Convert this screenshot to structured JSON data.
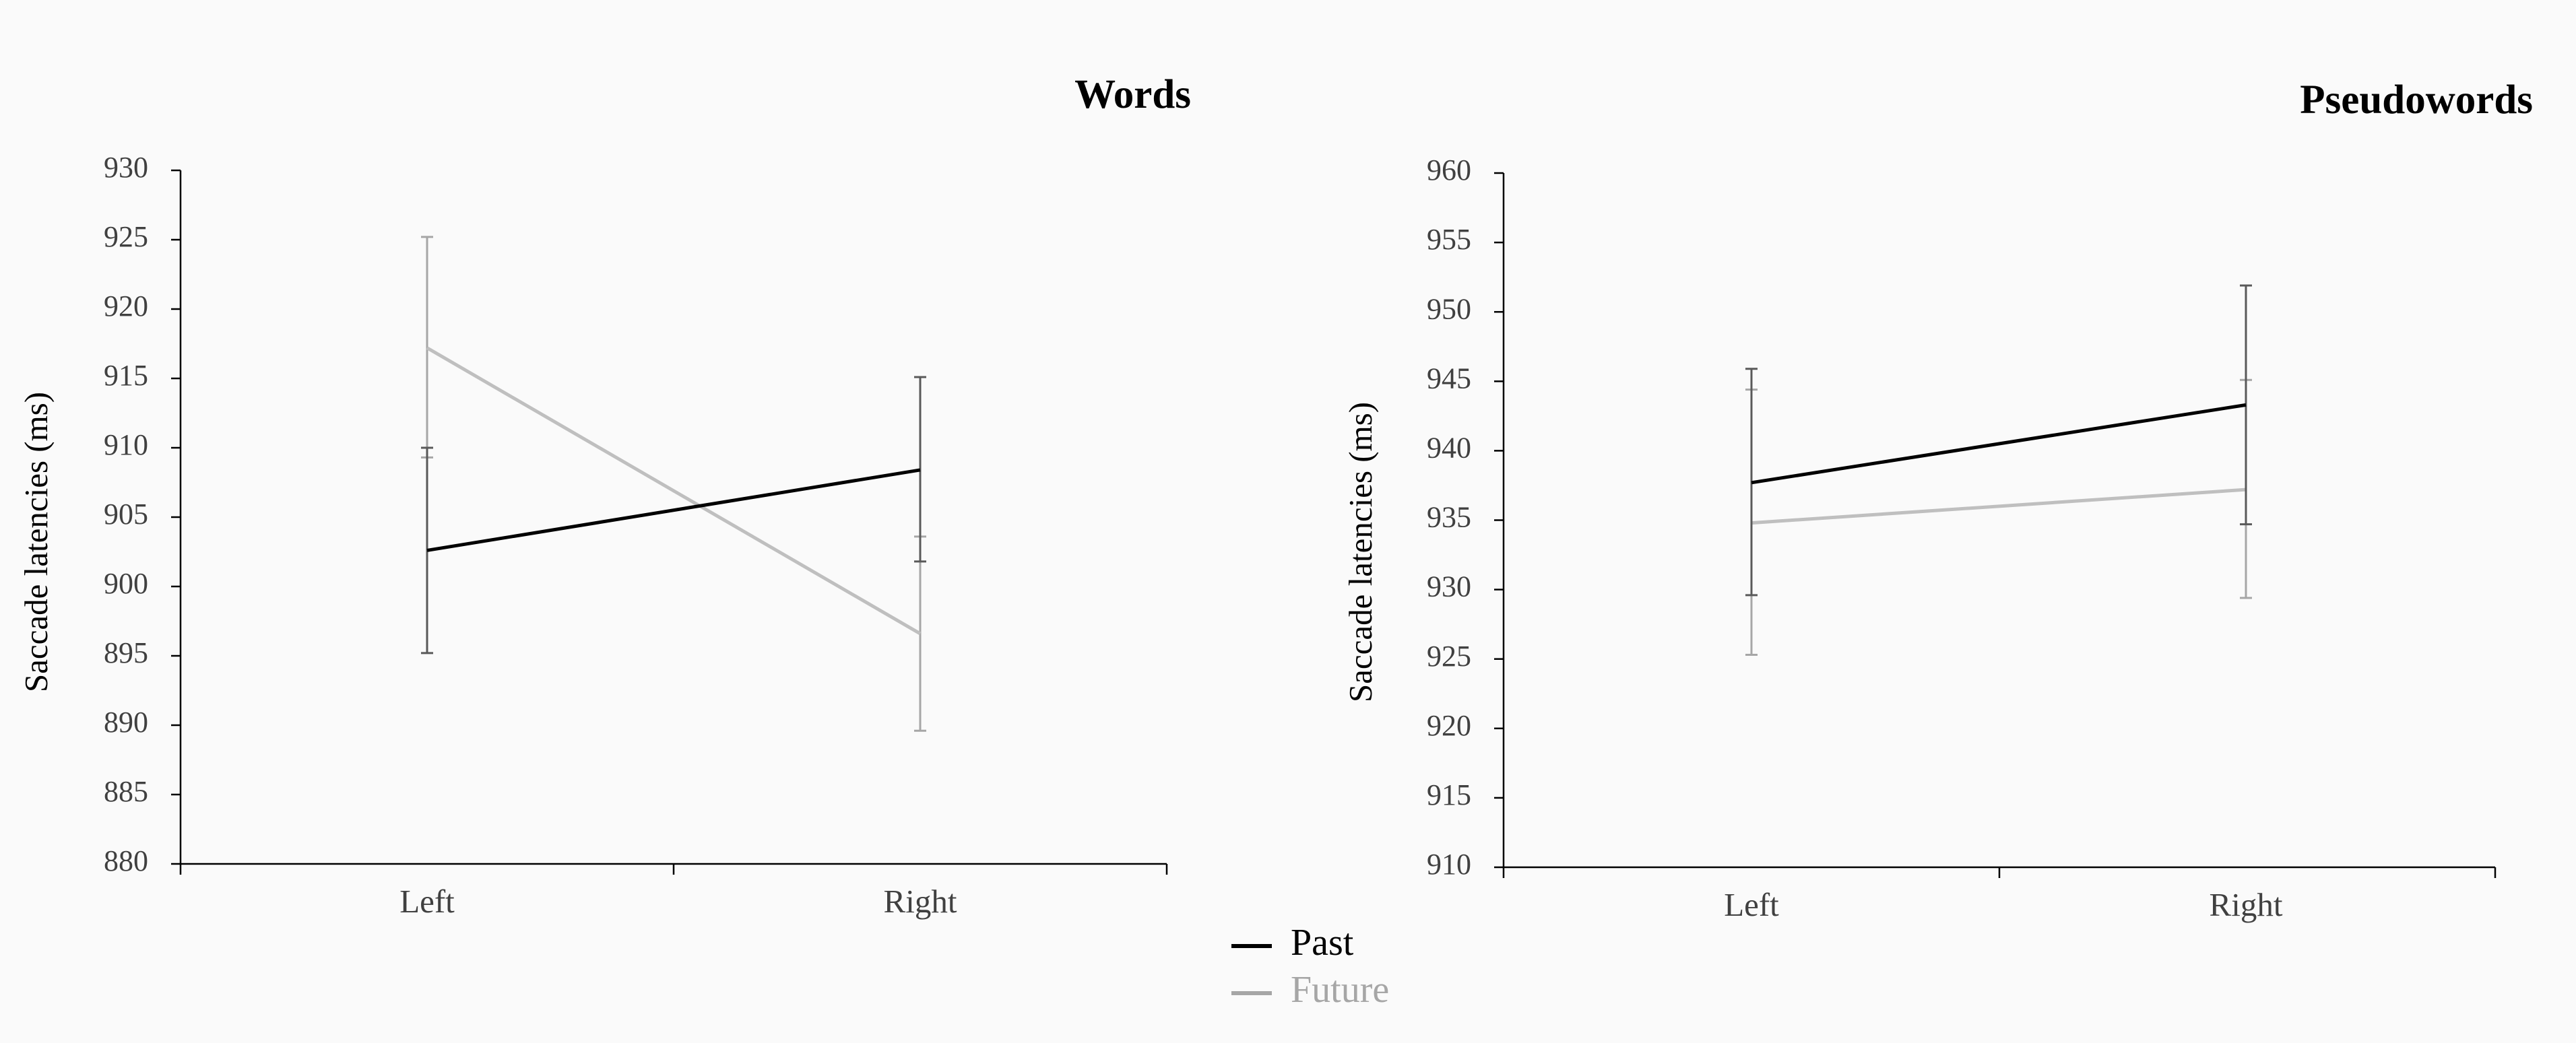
{
  "chart_data": [
    {
      "type": "line",
      "title": "Words",
      "ylabel": "Saccade latencies (ms)",
      "ylim": [
        880,
        930
      ],
      "yticks": [
        880,
        885,
        890,
        895,
        900,
        905,
        910,
        915,
        920,
        925,
        930
      ],
      "categories": [
        "Left",
        "Right"
      ],
      "series": [
        {
          "name": "Past",
          "values": [
            902.6,
            908.4
          ],
          "err_low": [
            895.2,
            901.8
          ],
          "err_high": [
            910.0,
            915.1
          ]
        },
        {
          "name": "Future",
          "values": [
            917.2,
            896.6
          ],
          "err_low": [
            909.3,
            889.6
          ],
          "err_high": [
            925.2,
            903.6
          ]
        }
      ]
    },
    {
      "type": "line",
      "title": "Pseudowords",
      "ylabel": "Saccade latencies (ms)",
      "ylim": [
        910,
        960
      ],
      "yticks": [
        910,
        915,
        920,
        925,
        930,
        935,
        940,
        945,
        950,
        955,
        960
      ],
      "categories": [
        "Left",
        "Right"
      ],
      "series": [
        {
          "name": "Past",
          "values": [
            937.7,
            943.3
          ],
          "err_low": [
            929.6,
            934.7
          ],
          "err_high": [
            945.9,
            951.9
          ]
        },
        {
          "name": "Future",
          "values": [
            934.8,
            937.2
          ],
          "err_low": [
            925.3,
            929.4
          ],
          "err_high": [
            944.4,
            945.1
          ]
        }
      ]
    }
  ],
  "legend": {
    "items": [
      {
        "label": "Past",
        "color": "#000000"
      },
      {
        "label": "Future",
        "color": "#a6a6a6"
      }
    ]
  },
  "colors": {
    "past": "#000000",
    "future": "#bfbfbf",
    "past_err": "#595959",
    "future_err": "#a6a6a6",
    "axis": "#000000"
  }
}
